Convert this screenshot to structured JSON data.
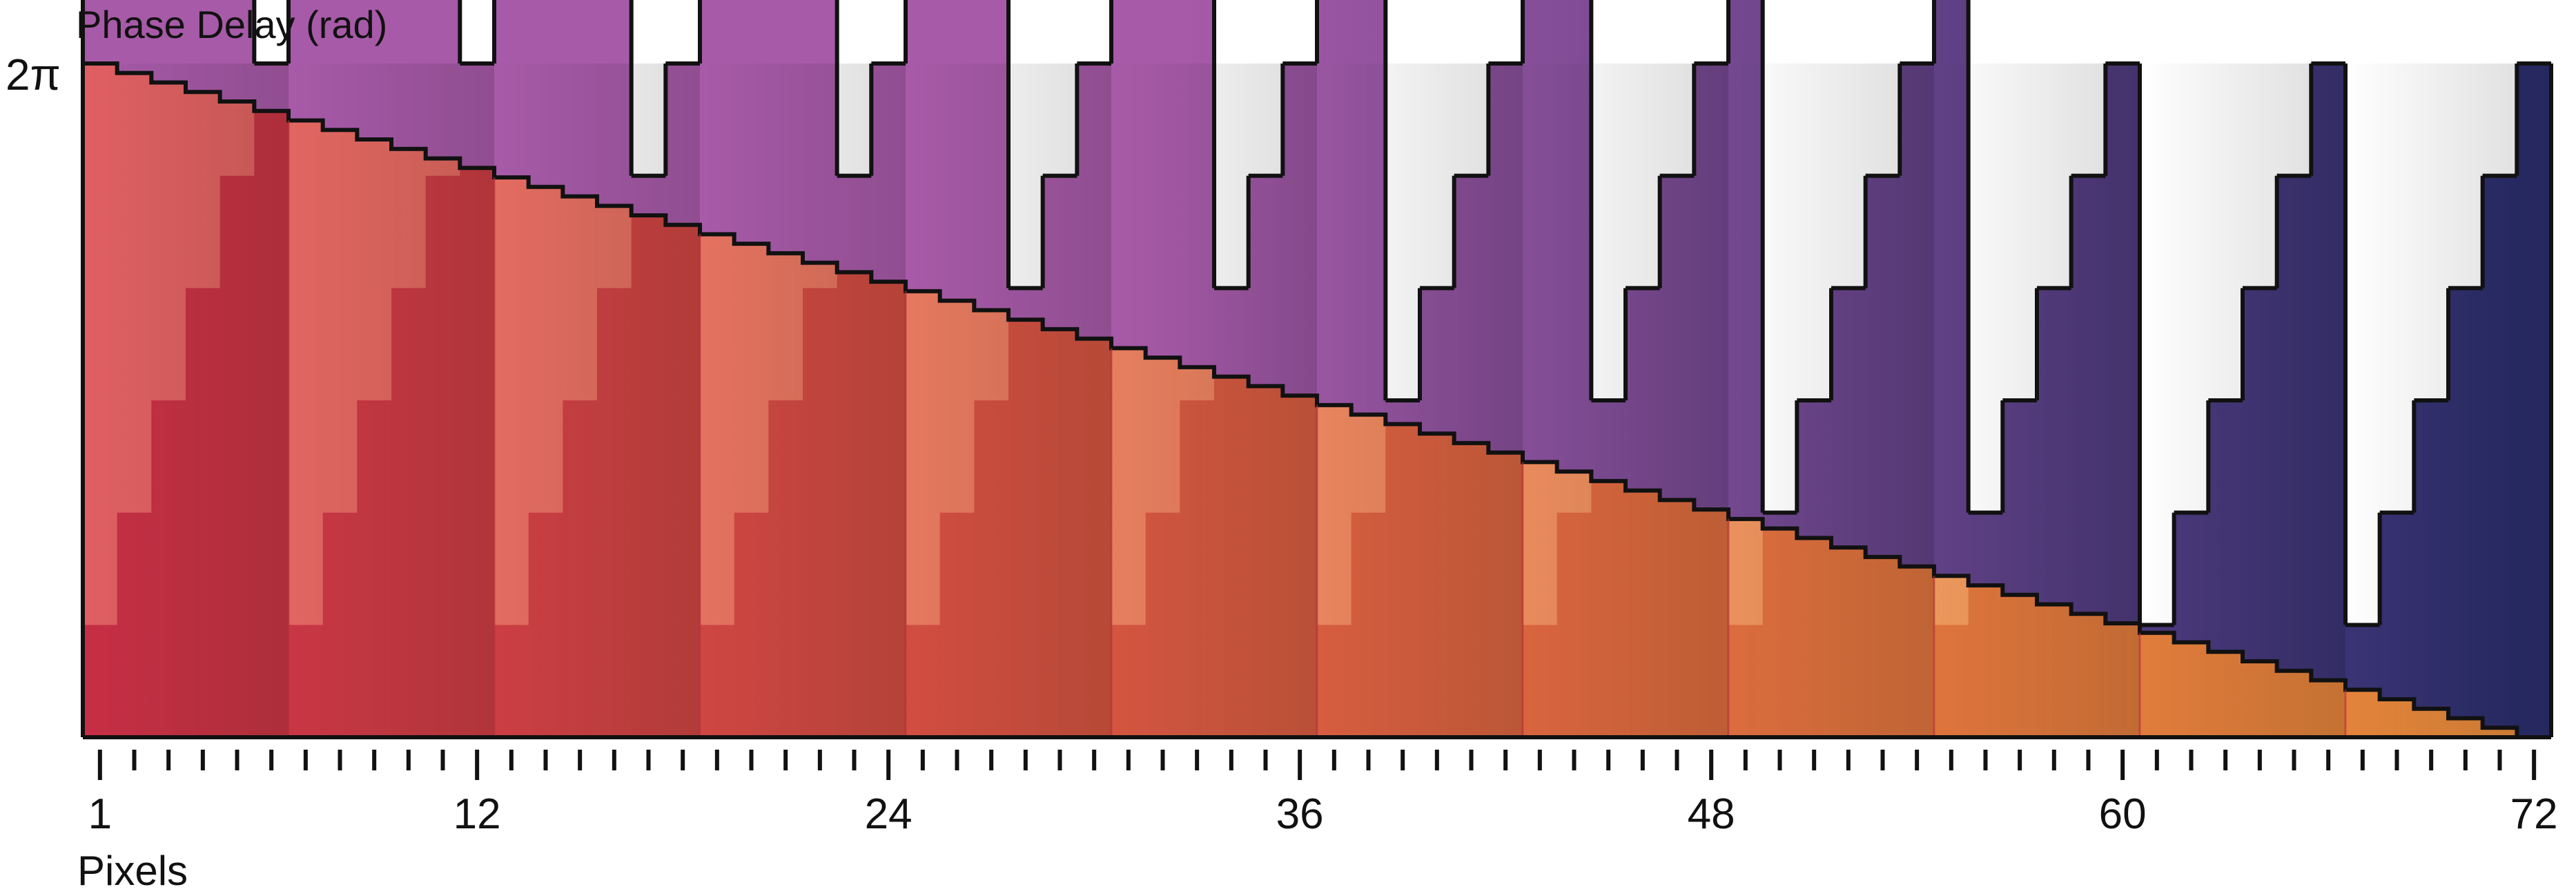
{
  "chart_data": {
    "type": "area",
    "title": "",
    "ylabel": "Phase Delay (rad)",
    "xlabel": "Pixels",
    "y_tick_label": "2π",
    "ylim": [
      0,
      6.2832
    ],
    "xlim": [
      1,
      72
    ],
    "x_ticks": [
      1,
      12,
      24,
      36,
      48,
      60,
      72
    ],
    "x_tick_labels": [
      "1",
      "12",
      "24",
      "36",
      "48",
      "60",
      "72"
    ],
    "grid": false,
    "legend": "none",
    "series": [
      {
        "name": "",
        "description": "stepped linear ramp, 6 levels per 2π period, period 6 pixels, drawn in front",
        "period_pixels": 6,
        "levels_per_period": 6,
        "max_level": 6.2832,
        "color_start": "#c72e45",
        "color_end": "#e68a3a"
      },
      {
        "name": "",
        "description": "descending staircase envelope from 2π at pixel 1 to 0 at pixel 72, drawn behind",
        "start_value": 6.2832,
        "end_value": 0,
        "color_start": "#e15f62",
        "color_end": "#f0a95a"
      },
      {
        "name": "",
        "description": "difference (stepped ramp minus envelope) wrapped to 2π, visible above the envelope",
        "color_start": "#a75aa8",
        "color_end": "#2b2e6d"
      }
    ],
    "colors": {
      "outline": "#111111",
      "axis": "#111111"
    }
  }
}
